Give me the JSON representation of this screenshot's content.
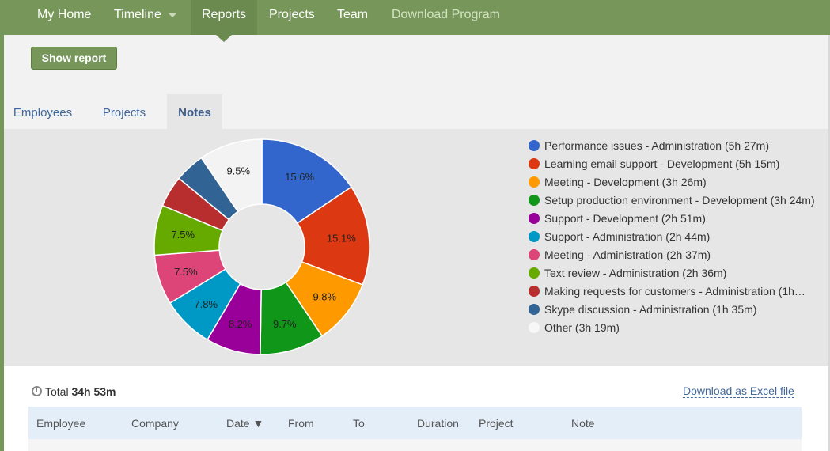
{
  "nav": {
    "items": [
      "My Home",
      "Timeline",
      "Reports",
      "Projects",
      "Team",
      "Download Program"
    ],
    "active": "Reports"
  },
  "toolbar": {
    "show_report": "Show report"
  },
  "tabs": {
    "items": [
      "Employees",
      "Projects",
      "Notes"
    ],
    "active": "Notes"
  },
  "chart_data": {
    "type": "pie",
    "title": "",
    "series": [
      {
        "name": "Performance issues - Administration (5h 27m)",
        "value": 15.6,
        "label": "15.6%",
        "color": "#3366cc"
      },
      {
        "name": "Learning email support - Development (5h 15m)",
        "value": 15.1,
        "label": "15.1%",
        "color": "#dc3912"
      },
      {
        "name": "Meeting - Development (3h 26m)",
        "value": 9.8,
        "label": "9.8%",
        "color": "#ff9900"
      },
      {
        "name": "Setup production environment - Development (3h 24m)",
        "value": 9.7,
        "label": "9.7%",
        "color": "#109618"
      },
      {
        "name": "Support - Development (2h 51m)",
        "value": 8.2,
        "label": "8.2%",
        "color": "#990099"
      },
      {
        "name": "Support - Administration (2h 44m)",
        "value": 7.8,
        "label": "7.8%",
        "color": "#0099c6"
      },
      {
        "name": "Meeting - Administration (2h 37m)",
        "value": 7.5,
        "label": "7.5%",
        "color": "#dd4477"
      },
      {
        "name": "Text review - Administration (2h 36m)",
        "value": 7.5,
        "label": "7.5%",
        "color": "#66aa00"
      },
      {
        "name": "Making requests for customers - Administration (1h…",
        "value": 4.7,
        "label": "",
        "color": "#b82e2e"
      },
      {
        "name": "Skype discussion - Administration (1h 35m)",
        "value": 4.5,
        "label": "",
        "color": "#316395"
      },
      {
        "name": "Other (3h 19m)",
        "value": 9.5,
        "label": "9.5%",
        "color": "#f3f3f3"
      }
    ],
    "legend": "right"
  },
  "summary": {
    "total_label": "Total",
    "total_value": "34h 53m",
    "excel_link": "Download as Excel file"
  },
  "table": {
    "columns": [
      "Employee",
      "Company",
      "Date ▼",
      "From",
      "To",
      "Duration",
      "Project",
      "Note"
    ]
  }
}
